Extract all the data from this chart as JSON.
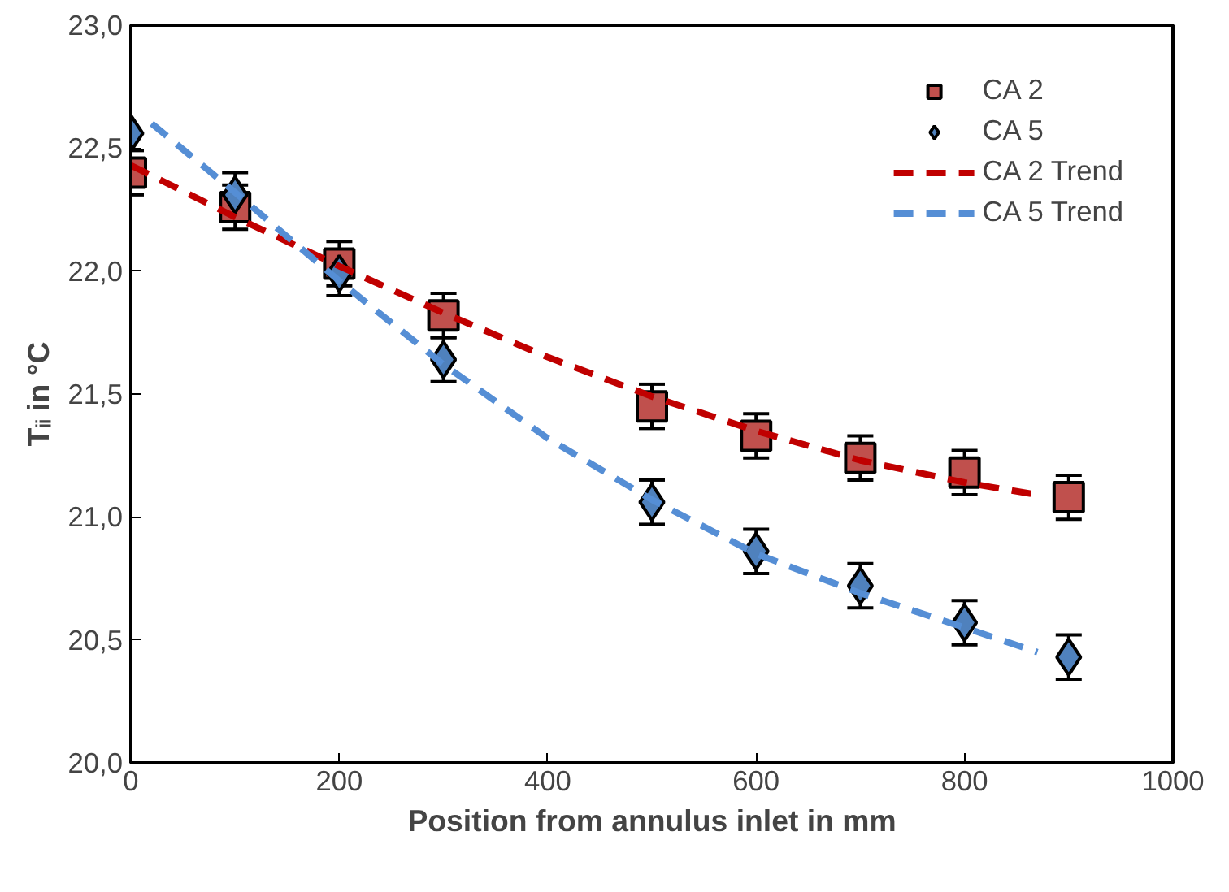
{
  "chart_data": {
    "type": "scatter",
    "xlabel": "Position from annulus inlet in mm",
    "ylabel": "Tᵢᵢ in °C",
    "x": [
      0,
      100,
      200,
      300,
      500,
      600,
      700,
      800,
      900
    ],
    "series": [
      {
        "name": "CA 2",
        "color": "#c0504d",
        "marker": "square",
        "values": [
          22.4,
          22.26,
          22.03,
          21.82,
          21.45,
          21.33,
          21.24,
          21.18,
          21.08
        ],
        "errors": [
          0.09,
          0.09,
          0.09,
          0.09,
          0.09,
          0.09,
          0.09,
          0.09,
          0.09
        ]
      },
      {
        "name": "CA 5",
        "color": "#4f81bd",
        "marker": "diamond",
        "values": [
          22.56,
          22.31,
          21.99,
          21.64,
          21.06,
          20.86,
          20.72,
          20.57,
          20.43
        ],
        "errors": [
          null,
          0.09,
          0.09,
          0.09,
          0.09,
          0.09,
          0.09,
          0.09,
          0.09
        ]
      },
      {
        "name": "CA 2 Trend",
        "type": "line",
        "color": "#c00000",
        "line_style": "dashed",
        "marker": "none",
        "x": [
          0,
          100,
          200,
          300,
          400,
          500,
          600,
          700,
          800,
          870
        ],
        "values": [
          22.43,
          22.22,
          22.02,
          21.83,
          21.65,
          21.49,
          21.35,
          21.23,
          21.14,
          21.09
        ]
      },
      {
        "name": "CA 5 Trend",
        "type": "line",
        "color": "#558ed5",
        "line_style": "dashed",
        "marker": "none",
        "x": [
          20,
          100,
          200,
          300,
          400,
          500,
          600,
          700,
          800,
          870
        ],
        "values": [
          22.6,
          22.32,
          21.96,
          21.62,
          21.32,
          21.07,
          20.85,
          20.69,
          20.55,
          20.45
        ]
      }
    ],
    "xlim": [
      0,
      1000
    ],
    "xticks": [
      0,
      200,
      400,
      600,
      800,
      1000
    ],
    "ylim": [
      20.0,
      23.0
    ],
    "yticks": [
      {
        "value": 20.0,
        "label": "20,0"
      },
      {
        "value": 20.5,
        "label": "20,5"
      },
      {
        "value": 21.0,
        "label": "21,0"
      },
      {
        "value": 21.5,
        "label": "21,5"
      },
      {
        "value": 22.0,
        "label": "22,0"
      },
      {
        "value": 22.5,
        "label": "22,5"
      },
      {
        "value": 23.0,
        "label": "23,0"
      }
    ],
    "grid": false,
    "legend": "top right"
  }
}
